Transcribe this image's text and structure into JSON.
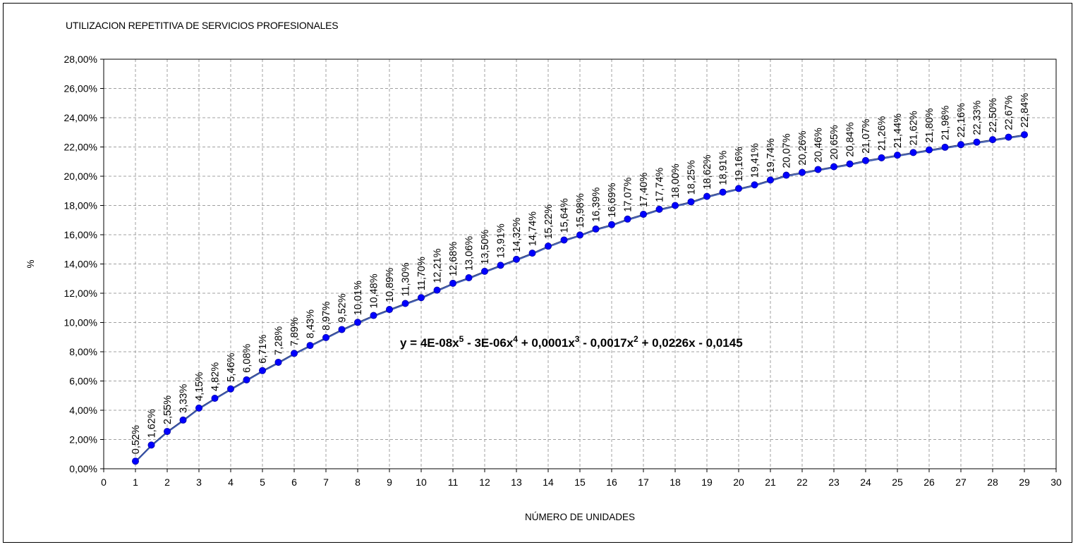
{
  "chart_data": {
    "type": "scatter",
    "title": "UTILIZACION REPETITIVA DE SERVICIOS PROFESIONALES",
    "xlabel": "NÚMERO DE UNIDADES",
    "ylabel": "%",
    "xlim": [
      0,
      30
    ],
    "ylim": [
      0,
      0.28
    ],
    "x_ticks": [
      "0",
      "1",
      "2",
      "3",
      "4",
      "5",
      "6",
      "7",
      "8",
      "9",
      "10",
      "11",
      "12",
      "13",
      "14",
      "15",
      "16",
      "17",
      "18",
      "19",
      "20",
      "21",
      "22",
      "23",
      "24",
      "25",
      "26",
      "27",
      "28",
      "29",
      "30"
    ],
    "y_ticks": [
      "0,00%",
      "2,00%",
      "4,00%",
      "6,00%",
      "8,00%",
      "10,00%",
      "12,00%",
      "14,00%",
      "16,00%",
      "18,00%",
      "20,00%",
      "22,00%",
      "24,00%",
      "26,00%",
      "28,00%"
    ],
    "grid": true,
    "marker_color": "#0000ff",
    "line_color": "#3c5ab4",
    "trendline": {
      "type": "polynomial",
      "order": 5,
      "equation": "y = 4E-08x5 - 3E-06x4 + 0,0001x3 - 0,0017x2 + 0,0226x - 0,0145"
    },
    "series": [
      {
        "x": [
          1,
          1.5,
          2,
          2.5,
          3,
          3.5,
          4,
          4.5,
          5,
          5.5,
          6,
          6.5,
          7,
          7.5,
          8,
          8.5,
          9,
          9.5,
          10,
          10.5,
          11,
          11.5,
          12,
          12.5,
          13,
          13.5,
          14,
          14.5,
          15,
          15.5,
          16,
          16.5,
          17,
          17.5,
          18,
          18.5,
          19,
          19.5,
          20,
          20.5,
          21,
          21.5,
          22,
          22.5,
          23,
          23.5,
          24,
          24.5,
          25,
          25.5,
          26,
          26.5,
          27,
          27.5,
          28,
          28.5,
          29
        ],
        "values": [
          0.0052,
          0.0162,
          0.0255,
          0.0333,
          0.0415,
          0.0482,
          0.0546,
          0.0608,
          0.0671,
          0.0728,
          0.0789,
          0.0843,
          0.0897,
          0.0952,
          0.1001,
          0.1048,
          0.1089,
          0.113,
          0.117,
          0.1221,
          0.1268,
          0.1306,
          0.135,
          0.1391,
          0.1432,
          0.1474,
          0.1522,
          0.1564,
          0.1598,
          0.1639,
          0.1669,
          0.1707,
          0.174,
          0.1774,
          0.18,
          0.1825,
          0.1862,
          0.1891,
          0.1916,
          0.1941,
          0.1974,
          0.2007,
          0.2026,
          0.2046,
          0.2065,
          0.2084,
          0.2107,
          0.2126,
          0.2144,
          0.2162,
          0.218,
          0.2198,
          0.2216,
          0.2233,
          0.225,
          0.2267,
          0.2284
        ],
        "labels": [
          "0,52%",
          "1,62%",
          "2,55%",
          "3,33%",
          "4,15%",
          "4,82%",
          "5,46%",
          "6,08%",
          "6,71%",
          "7,28%",
          "7,89%",
          "8,43%",
          "8,97%",
          "9,52%",
          "10,01%",
          "10,48%",
          "10,89%",
          "11,30%",
          "11,70%",
          "12,21%",
          "12,68%",
          "13,06%",
          "13,50%",
          "13,91%",
          "14,32%",
          "14,74%",
          "15,22%",
          "15,64%",
          "15,98%",
          "16,39%",
          "16,69%",
          "17,07%",
          "17,40%",
          "17,74%",
          "18,00%",
          "18,25%",
          "18,62%",
          "18,91%",
          "19,16%",
          "19,41%",
          "19,74%",
          "20,07%",
          "20,26%",
          "20,46%",
          "20,65%",
          "20,84%",
          "21,07%",
          "21,26%",
          "21,44%",
          "21,62%",
          "21,80%",
          "21,98%",
          "22,16%",
          "22,33%",
          "22,50%",
          "22,67%",
          "22,84%"
        ]
      }
    ]
  }
}
